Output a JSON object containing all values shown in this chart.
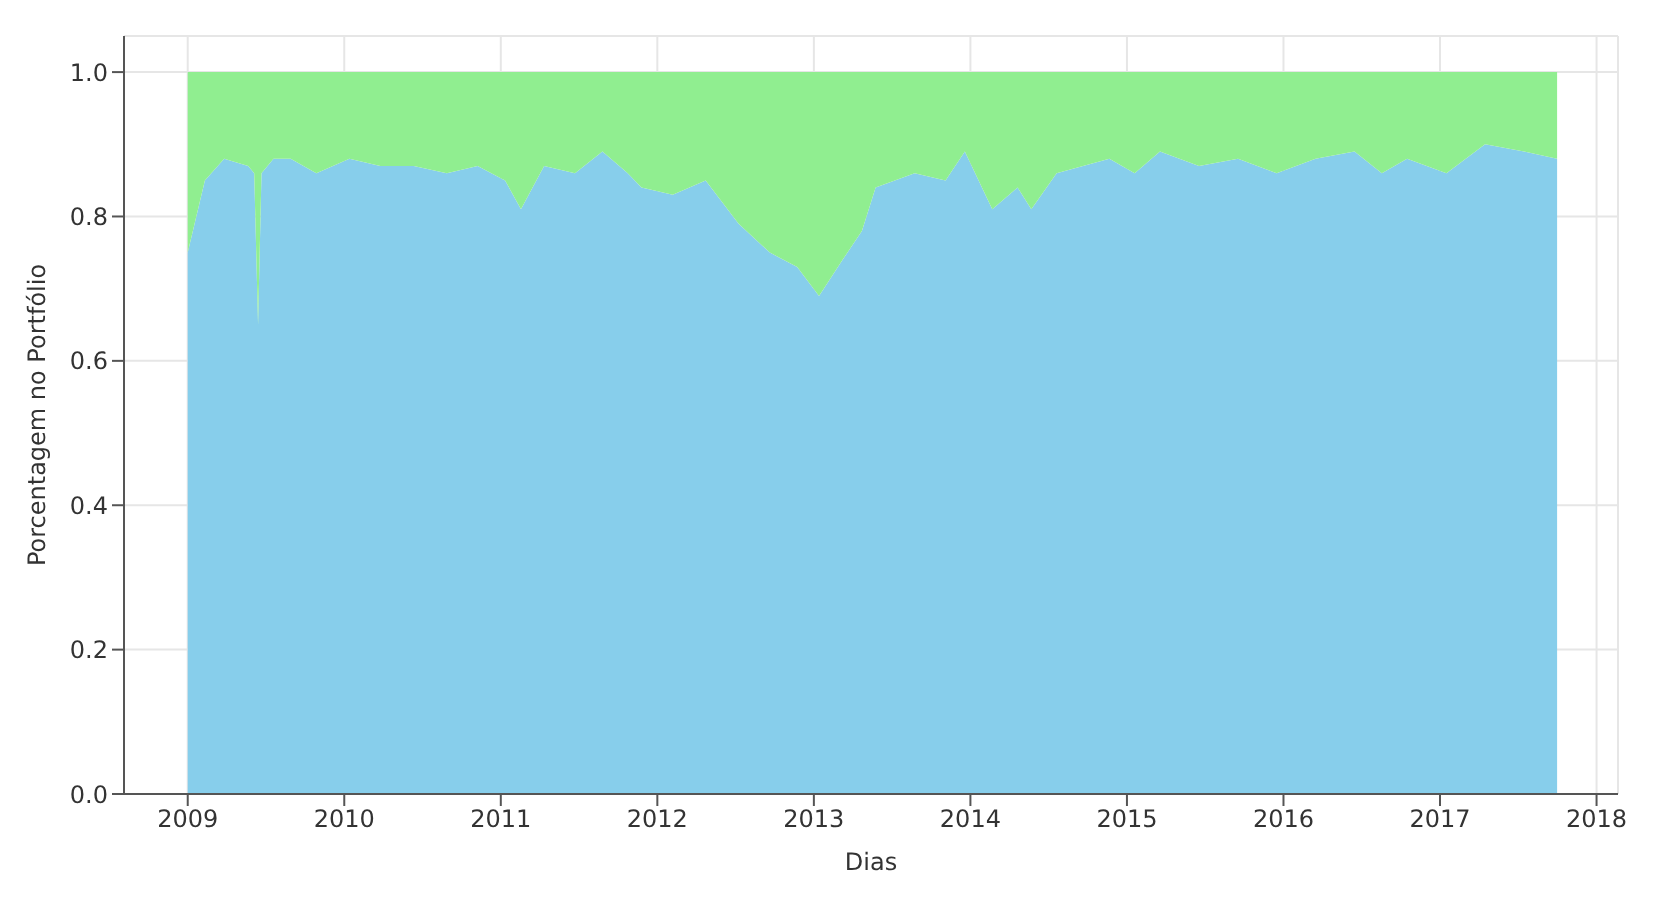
{
  "chart_data": {
    "type": "area",
    "stacked": true,
    "xlabel": "Dias",
    "ylabel": "Porcentagem no Portfólio",
    "x": [
      "2009-01-01",
      "2009-02-10",
      "2009-03-27",
      "2009-05-22",
      "2009-06-05",
      "2009-06-14",
      "2009-06-22",
      "2009-07-20",
      "2009-08-29",
      "2009-10-28",
      "2010-01-13",
      "2010-03-26",
      "2010-06-12",
      "2010-08-28",
      "2010-11-08",
      "2011-01-11",
      "2011-02-17",
      "2011-04-12",
      "2011-06-23",
      "2011-08-26",
      "2011-10-24",
      "2011-11-25",
      "2012-02-06",
      "2012-04-23",
      "2012-07-09",
      "2012-09-20",
      "2012-11-23",
      "2013-01-13",
      "2013-03-09",
      "2013-04-23",
      "2013-05-25",
      "2013-08-24",
      "2013-11-04",
      "2013-12-19",
      "2014-02-21",
      "2014-04-21",
      "2014-05-23",
      "2014-07-21",
      "2014-11-21",
      "2015-01-19",
      "2015-03-19",
      "2015-06-18",
      "2015-09-17",
      "2015-12-16",
      "2016-03-16",
      "2016-06-15",
      "2016-08-18",
      "2016-10-16",
      "2017-01-16",
      "2017-04-16",
      "2017-07-16",
      "2017-10-01"
    ],
    "series": [
      {
        "color": "#87ceeb",
        "values": [
          0.75,
          0.85,
          0.88,
          0.87,
          0.86,
          0.65,
          0.86,
          0.88,
          0.88,
          0.86,
          0.88,
          0.87,
          0.87,
          0.86,
          0.87,
          0.85,
          0.81,
          0.87,
          0.86,
          0.89,
          0.86,
          0.84,
          0.83,
          0.85,
          0.79,
          0.75,
          0.73,
          0.69,
          0.74,
          0.78,
          0.84,
          0.86,
          0.85,
          0.89,
          0.81,
          0.84,
          0.81,
          0.86,
          0.88,
          0.86,
          0.89,
          0.87,
          0.88,
          0.86,
          0.88,
          0.89,
          0.86,
          0.88,
          0.86,
          0.9,
          0.89,
          0.88
        ]
      },
      {
        "color": "#90ee90",
        "values": [
          0.25,
          0.15,
          0.12,
          0.13,
          0.14,
          0.35,
          0.14,
          0.12,
          0.12,
          0.14,
          0.12,
          0.13,
          0.13,
          0.14,
          0.13,
          0.15,
          0.19,
          0.13,
          0.14,
          0.11,
          0.14,
          0.16,
          0.17,
          0.15,
          0.21,
          0.25,
          0.27,
          0.31,
          0.26,
          0.22,
          0.16,
          0.14,
          0.15,
          0.11,
          0.19,
          0.16,
          0.19,
          0.14,
          0.12,
          0.14,
          0.11,
          0.13,
          0.12,
          0.14,
          0.12,
          0.11,
          0.14,
          0.12,
          0.14,
          0.1,
          0.11,
          0.12
        ]
      }
    ],
    "xlim": [
      "2008-08-05",
      "2018-02-20"
    ],
    "xticks": [
      "2009",
      "2010",
      "2011",
      "2012",
      "2013",
      "2014",
      "2015",
      "2016",
      "2017",
      "2018"
    ],
    "ylim": [
      0,
      1.05
    ],
    "yticks": [
      {
        "value": 0,
        "label": "0.0"
      },
      0.2,
      0.4,
      0.6,
      0.8,
      {
        "value": 1,
        "label": "1.0"
      }
    ],
    "grid": true
  }
}
